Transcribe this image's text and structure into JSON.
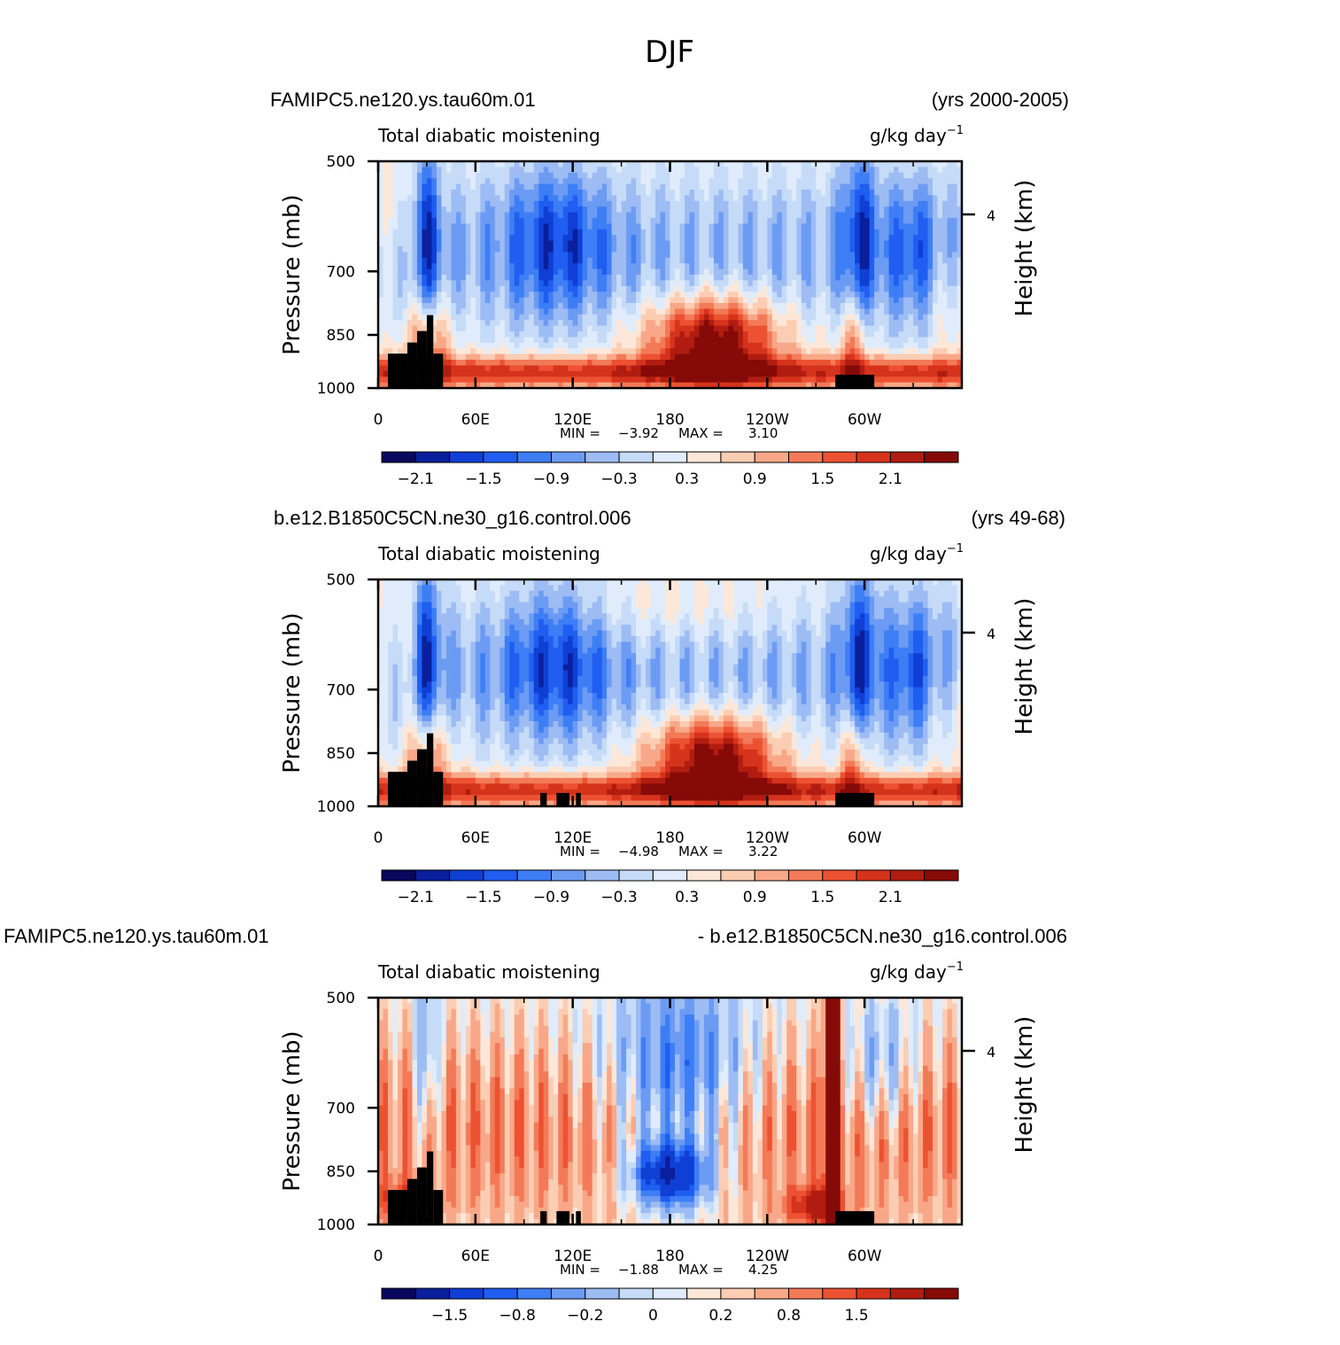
{
  "page_title": "DJF",
  "chart_data": [
    {
      "type": "heatmap",
      "left_title": "FAMIPC5.ne120.ys.tau60m.01",
      "right_title": "(yrs 2000-2005)",
      "center_label": "Total diabatic moistening",
      "units": "g/kg day",
      "units_exp": "−1",
      "ylabel": "Pressure (mb)",
      "ylabel_right": "Height (km)",
      "x_ticks": [
        "0",
        "60E",
        "120E",
        "180",
        "120W",
        "60W"
      ],
      "y_ticks": [
        "500",
        "700",
        "850",
        "1000"
      ],
      "right_ticks": [
        "4"
      ],
      "xlim": [
        0,
        360
      ],
      "ylim": [
        1000,
        500
      ],
      "min_label": "MIN =",
      "min_value": "−3.92",
      "max_label": "MAX =",
      "max_value": "3.10",
      "colorbar_labels": [
        "−2.1",
        "−1.5",
        "−0.9",
        "−0.3",
        "0.3",
        "0.9",
        "1.5",
        "2.1"
      ],
      "colorbar_levels": [
        -2.4,
        -2.1,
        -1.8,
        -1.5,
        -1.2,
        -0.9,
        -0.6,
        -0.3,
        0,
        0.3,
        0.6,
        0.9,
        1.2,
        1.5,
        1.8,
        2.1,
        2.4
      ],
      "diff": false
    },
    {
      "type": "heatmap",
      "left_title": "b.e12.B1850C5CN.ne30_g16.control.006",
      "right_title": "(yrs 49-68)",
      "center_label": "Total diabatic moistening",
      "units": "g/kg day",
      "units_exp": "−1",
      "ylabel": "Pressure (mb)",
      "ylabel_right": "Height (km)",
      "x_ticks": [
        "0",
        "60E",
        "120E",
        "180",
        "120W",
        "60W"
      ],
      "y_ticks": [
        "500",
        "700",
        "850",
        "1000"
      ],
      "right_ticks": [
        "4"
      ],
      "xlim": [
        0,
        360
      ],
      "ylim": [
        1000,
        500
      ],
      "min_label": "MIN =",
      "min_value": "−4.98",
      "max_label": "MAX =",
      "max_value": "3.22",
      "colorbar_labels": [
        "−2.1",
        "−1.5",
        "−0.9",
        "−0.3",
        "0.3",
        "0.9",
        "1.5",
        "2.1"
      ],
      "colorbar_levels": [
        -2.4,
        -2.1,
        -1.8,
        -1.5,
        -1.2,
        -0.9,
        -0.6,
        -0.3,
        0,
        0.3,
        0.6,
        0.9,
        1.2,
        1.5,
        1.8,
        2.1,
        2.4
      ],
      "diff": false
    },
    {
      "type": "heatmap",
      "left_title": "FAMIPC5.ne120.ys.tau60m.01",
      "right_title": "- b.e12.B1850C5CN.ne30_g16.control.006",
      "center_label": "Total diabatic moistening",
      "units": "g/kg day",
      "units_exp": "−1",
      "ylabel": "Pressure (mb)",
      "ylabel_right": "Height (km)",
      "x_ticks": [
        "0",
        "60E",
        "120E",
        "180",
        "120W",
        "60W"
      ],
      "y_ticks": [
        "500",
        "700",
        "850",
        "1000"
      ],
      "right_ticks": [
        "4"
      ],
      "xlim": [
        0,
        360
      ],
      "ylim": [
        1000,
        500
      ],
      "min_label": "MIN =",
      "min_value": "−1.88",
      "max_label": "MAX =",
      "max_value": "4.25",
      "colorbar_labels": [
        "−1.5",
        "−0.8",
        "−0.2",
        "0",
        "0.2",
        "0.8",
        "1.5"
      ],
      "colorbar_levels": [
        -2,
        -1.5,
        -1,
        -0.8,
        -0.6,
        -0.4,
        -0.2,
        -0.1,
        0,
        0.1,
        0.2,
        0.4,
        0.6,
        0.8,
        1,
        1.5,
        2
      ],
      "diff": true
    }
  ],
  "colors": {
    "palette": [
      "#08085e",
      "#0a1f9c",
      "#0f3fd4",
      "#1f5ef0",
      "#3e7ef5",
      "#6c9bf3",
      "#9dbcf4",
      "#c6dbf7",
      "#e0ecfb",
      "#fde7d8",
      "#fbcdb3",
      "#f8a888",
      "#f37a58",
      "#ec5232",
      "#d5331c",
      "#b01d10",
      "#850a08"
    ],
    "topography": "#000000"
  }
}
